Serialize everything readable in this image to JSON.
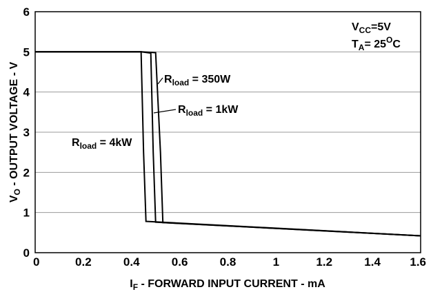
{
  "chart_data": {
    "type": "line",
    "title": "",
    "xlabel": {
      "main": "I",
      "sub": "F",
      "rest": " - FORWARD INPUT CURRENT - mA"
    },
    "ylabel": {
      "main": "V",
      "sub": "O",
      "rest": " - OUTPUT VOLTAGE - V"
    },
    "xlim": [
      0,
      1.6
    ],
    "ylim": [
      0,
      6
    ],
    "xticks": [
      0,
      0.2,
      0.4,
      0.6,
      0.8,
      1,
      1.2,
      1.4,
      1.6
    ],
    "xtick_labels": [
      "0",
      "0.2",
      "0.4",
      "0.6",
      "0.8",
      "1",
      "1.2",
      "1.4",
      "1.6"
    ],
    "yticks": [
      0,
      1,
      2,
      3,
      4,
      5,
      6
    ],
    "ytick_labels": [
      "0",
      "1",
      "2",
      "3",
      "4",
      "5",
      "6"
    ],
    "grid": "horizontal",
    "conditions": [
      {
        "main": "V",
        "sub": "CC",
        "rest": "=5V"
      },
      {
        "main": "T",
        "sub": "A",
        "rest": "= 25",
        "sup": "O",
        "tail": "C"
      }
    ],
    "series": [
      {
        "label_main": "R",
        "label_sub": "load",
        "label_rest": " = 350W",
        "x": [
          0,
          0.44,
          0.5,
          0.52,
          0.53,
          1.6
        ],
        "y": [
          5,
          5,
          4.98,
          2.5,
          0.75,
          0.42
        ]
      },
      {
        "label_main": "R",
        "label_sub": "load",
        "label_rest": " = 1kW",
        "x": [
          0,
          0.44,
          0.48,
          0.49,
          0.5,
          1.6
        ],
        "y": [
          5,
          5,
          4.97,
          2.5,
          0.76,
          0.42
        ]
      },
      {
        "label_main": "R",
        "label_sub": "load",
        "label_rest": " = 4kW",
        "x": [
          0,
          0.44,
          0.44,
          0.45,
          0.46,
          1.6
        ],
        "y": [
          5,
          5,
          4.95,
          2.5,
          0.78,
          0.42
        ]
      }
    ]
  }
}
